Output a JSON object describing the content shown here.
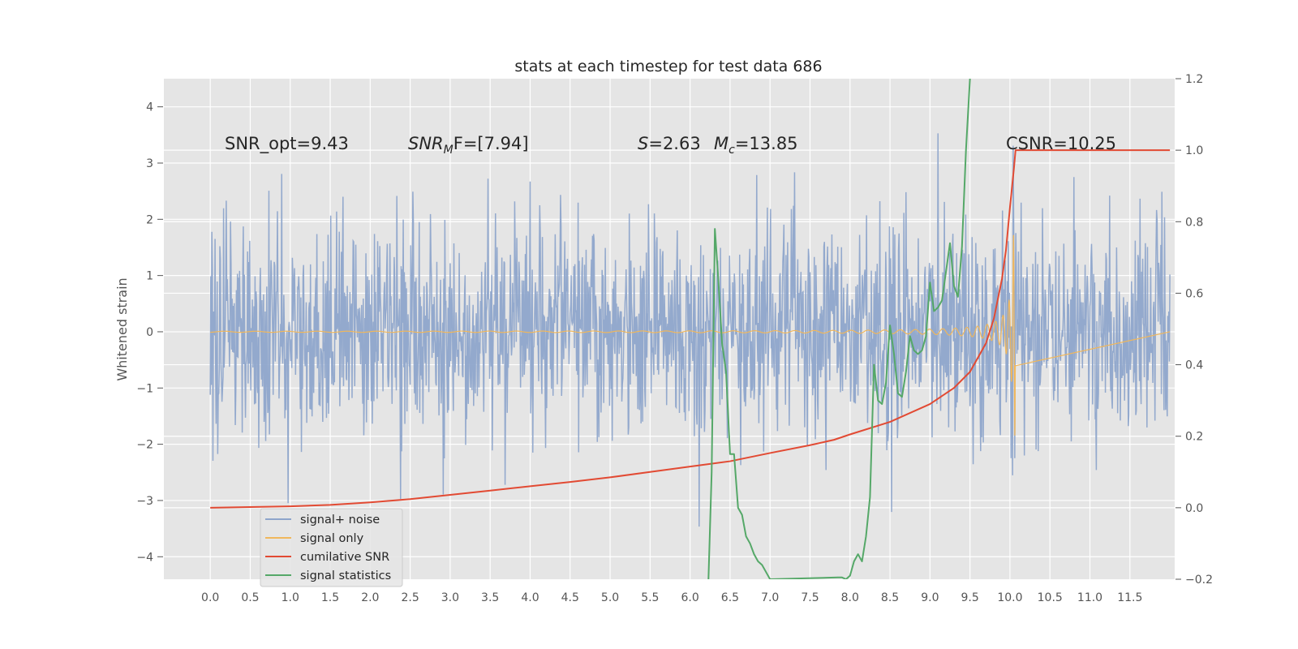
{
  "chart_data": {
    "type": "line",
    "title": "stats at each timestep for test data 686",
    "ylabel": "Whitened strain",
    "xlim": [
      -0.58,
      12.06
    ],
    "ylim": [
      -4.4,
      4.5
    ],
    "y2lim": [
      -0.2,
      1.2
    ],
    "x_ticks": [
      0.0,
      0.5,
      1.0,
      1.5,
      2.0,
      2.5,
      3.0,
      3.5,
      4.0,
      4.5,
      5.0,
      5.5,
      6.0,
      6.5,
      7.0,
      7.5,
      8.0,
      8.5,
      9.0,
      9.5,
      10.0,
      10.5,
      11.0,
      11.5
    ],
    "x_tick_labels": [
      "0.0",
      "0.5",
      "1.0",
      "1.5",
      "2.0",
      "2.5",
      "3.0",
      "3.5",
      "4.0",
      "4.5",
      "5.0",
      "5.5",
      "6.0",
      "6.5",
      "7.0",
      "7.5",
      "8.0",
      "8.5",
      "9.0",
      "9.5",
      "10.0",
      "10.5",
      "11.0",
      "11.5"
    ],
    "y_ticks": [
      -4,
      -3,
      -2,
      -1,
      0,
      1,
      2,
      3,
      4
    ],
    "y_tick_labels": [
      "−4",
      "−3",
      "−2",
      "−1",
      "0",
      "1",
      "2",
      "3",
      "4"
    ],
    "y2_ticks": [
      -0.2,
      0.0,
      0.2,
      0.4,
      0.6,
      0.8,
      1.0,
      1.2
    ],
    "y2_tick_labels": [
      "−0.2",
      "0.0",
      "0.2",
      "0.4",
      "0.6",
      "0.8",
      "1.0",
      "1.2"
    ],
    "grid": true,
    "legend_position": "lower-left",
    "noise": {
      "x_range": [
        0.0,
        12.0
      ],
      "points": 1800,
      "sigma": 0.95
    },
    "signal": {
      "x_range": [
        0.0,
        10.07
      ],
      "merger_x": 10.07,
      "peak_amplitude": 1.85
    },
    "series": [
      {
        "name": "signal+ noise",
        "color": "#8EA5CB",
        "axis": "left"
      },
      {
        "name": "signal only",
        "color": "#F0B75C",
        "axis": "left"
      },
      {
        "name": "cumilative SNR",
        "color": "#E24A33",
        "axis": "right",
        "x": [
          0.0,
          0.5,
          1.0,
          1.5,
          2.0,
          2.5,
          3.0,
          3.5,
          4.0,
          4.5,
          5.0,
          5.5,
          6.0,
          6.5,
          7.0,
          7.5,
          7.8,
          8.0,
          8.5,
          9.0,
          9.3,
          9.5,
          9.7,
          9.8,
          9.9,
          9.95,
          10.0,
          10.05,
          10.07,
          12.0
        ],
        "y": [
          0.0,
          0.002,
          0.004,
          0.008,
          0.015,
          0.024,
          0.036,
          0.048,
          0.06,
          0.072,
          0.085,
          0.1,
          0.115,
          0.13,
          0.153,
          0.175,
          0.19,
          0.205,
          0.24,
          0.29,
          0.335,
          0.38,
          0.46,
          0.53,
          0.64,
          0.72,
          0.84,
          0.95,
          1.0,
          1.0
        ]
      },
      {
        "name": "signal statistics",
        "color": "#55A868",
        "axis": "right",
        "x": [
          6.23,
          6.27,
          6.31,
          6.35,
          6.4,
          6.45,
          6.5,
          6.55,
          6.6,
          6.65,
          6.7,
          6.75,
          6.8,
          6.85,
          6.9,
          6.95,
          7.0,
          7.85,
          7.9,
          7.95,
          8.0,
          8.05,
          8.1,
          8.15,
          8.2,
          8.25,
          8.3,
          8.35,
          8.4,
          8.45,
          8.5,
          8.55,
          8.6,
          8.65,
          8.7,
          8.75,
          8.8,
          8.85,
          8.9,
          8.95,
          9.0,
          9.05,
          9.1,
          9.15,
          9.2,
          9.25,
          9.3,
          9.35,
          9.4,
          9.45,
          9.5
        ],
        "y": [
          -0.2,
          0.1,
          0.78,
          0.65,
          0.46,
          0.38,
          0.15,
          0.15,
          0.0,
          -0.02,
          -0.08,
          -0.1,
          -0.13,
          -0.15,
          -0.16,
          -0.18,
          -0.2,
          -0.195,
          -0.195,
          -0.2,
          -0.19,
          -0.15,
          -0.13,
          -0.15,
          -0.08,
          0.03,
          0.4,
          0.3,
          0.29,
          0.35,
          0.51,
          0.43,
          0.32,
          0.31,
          0.38,
          0.48,
          0.44,
          0.43,
          0.44,
          0.48,
          0.63,
          0.55,
          0.56,
          0.58,
          0.66,
          0.74,
          0.62,
          0.59,
          0.73,
          1.0,
          1.2
        ]
      }
    ],
    "annotations": {
      "snr_opt": "SNR_opt=9.43",
      "snr_mf_label": "SNR",
      "snr_mf_sub": "M",
      "snr_mf_tail": "F=[7.94]",
      "s_label": "S",
      "s_value": "=2.63",
      "mc_label": "M",
      "mc_sub": "c",
      "mc_value": "=13.85",
      "csnr": "CSNR=10.25"
    }
  }
}
